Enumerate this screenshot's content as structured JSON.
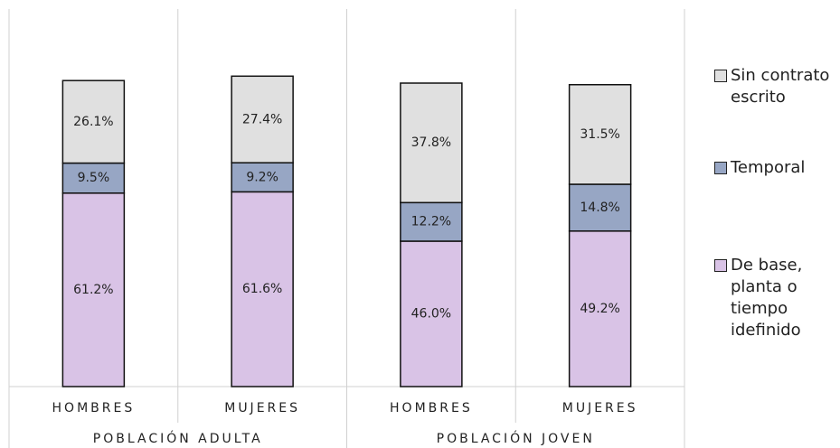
{
  "chart_data": {
    "type": "bar",
    "stacked": true,
    "groups": [
      {
        "label": "POBLACIÓN ADULTA",
        "categories": [
          "HOMBRES",
          "MUJERES"
        ]
      },
      {
        "label": "POBLACIÓN JOVEN",
        "categories": [
          "HOMBRES",
          "MUJERES"
        ]
      }
    ],
    "series": [
      {
        "name": "De base, planta o tiempo idefinido",
        "color": "#d9c3e6",
        "values": [
          61.2,
          61.6,
          46.0,
          49.2
        ],
        "value_labels": [
          "61.2%",
          "61.6%",
          "46.0%",
          "49.2%"
        ]
      },
      {
        "name": "Temporal",
        "color": "#97a6c4",
        "values": [
          9.5,
          9.2,
          12.2,
          14.8
        ],
        "value_labels": [
          "9.5%",
          "9.2%",
          "12.2%",
          "14.8%"
        ]
      },
      {
        "name": "Sin contrato escrito",
        "color": "#e0e0e0",
        "values": [
          26.1,
          27.4,
          37.8,
          31.5
        ],
        "value_labels": [
          "26.1%",
          "27.4%",
          "37.8%",
          "31.5%"
        ]
      }
    ],
    "legend": "right"
  }
}
